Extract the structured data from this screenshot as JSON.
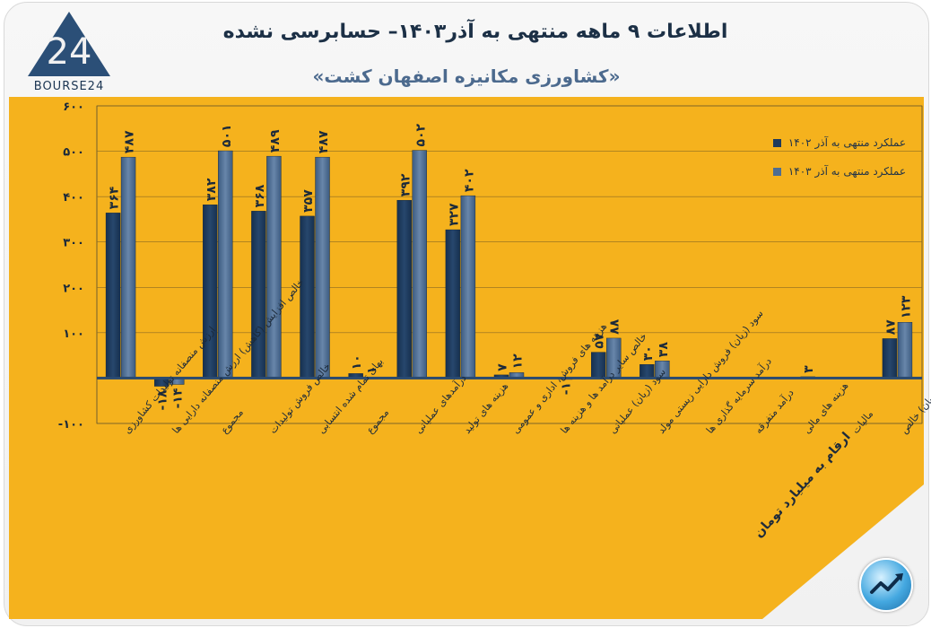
{
  "header": {
    "title": "اطلاعات ۹ ماهه منتهی به آذر۱۴۰۳– حسابرسی نشده",
    "subtitle": "«کشاورزی مکانیزه اصفهان کشت»",
    "logo_text": "BOURSE24"
  },
  "colors": {
    "background": "#f5b21d",
    "plot_area": "#f5b21d",
    "series_1": "#1f3a5c",
    "series_2": "#4e6d92",
    "text_dark": "#1c2a3a"
  },
  "footer": {
    "unit_note": "ارقام به میلیارد تومان"
  },
  "chart_data": {
    "type": "bar",
    "ylim": [
      -100,
      600
    ],
    "yticks": [
      -100,
      0,
      100,
      200,
      300,
      400,
      500,
      600
    ],
    "ytick_labels": [
      "-۱۰۰",
      "",
      "۱۰۰",
      "۲۰۰",
      "۳۰۰",
      "۴۰۰",
      "۵۰۰",
      "۶۰۰"
    ],
    "grid": true,
    "legend_position": "top-right",
    "categories": [
      "ارزش منصفانه تولیدات کشاورزی",
      "خالص افزایش (کاهش) ارزش منصفانه دارایی ها",
      "مجموع",
      "خالص فروش تولیدات",
      "بهای تمام شده انتسابی",
      "مجموع",
      "درآمدهای عملیاتی",
      "هزینه های تولید",
      "هزینه های فروش، اداری و عمومی",
      "خالص سایر درآمد ها و هزینه ها",
      "سود (زیان) عملیاتی",
      "سود (زیان) فروش دارایی زیستی مولد",
      "درآمد سرمایه گذاری ها",
      "درآمد متفرقه",
      "هزینه های مالی",
      "مالیات",
      "سود (زیان) خالص"
    ],
    "series": [
      {
        "name": "عملکرد منتهی به آذر ۱۴۰۲",
        "values": [
          364,
          -18,
          382,
          368,
          357,
          10,
          392,
          327,
          7,
          0,
          57,
          30,
          0,
          0,
          0,
          0,
          87
        ],
        "labels": [
          "۳۶۴",
          "-۱۸",
          "۳۸۲",
          "۳۶۸",
          "۳۵۷",
          "۱۰",
          "۳۹۲",
          "۳۲۷",
          "۷",
          "",
          "۵۷",
          "۳۰",
          "",
          "",
          "",
          "",
          "۸۷"
        ]
      },
      {
        "name": "عملکرد منتهی به آذر ۱۴۰۳",
        "values": [
          487,
          -14,
          501,
          489,
          487,
          1,
          502,
          402,
          12,
          -1,
          88,
          38,
          0,
          0,
          3,
          0,
          123
        ],
        "labels": [
          "۴۸۷",
          "-۱۴",
          "۵۰۱",
          "۴۸۹",
          "۴۸۷",
          "۱",
          "۵۰۲",
          "۴۰۲",
          "۱۲",
          "-۱",
          "۸۸",
          "۳۸",
          "",
          "",
          "۳",
          "",
          "۱۲۳"
        ]
      }
    ]
  }
}
